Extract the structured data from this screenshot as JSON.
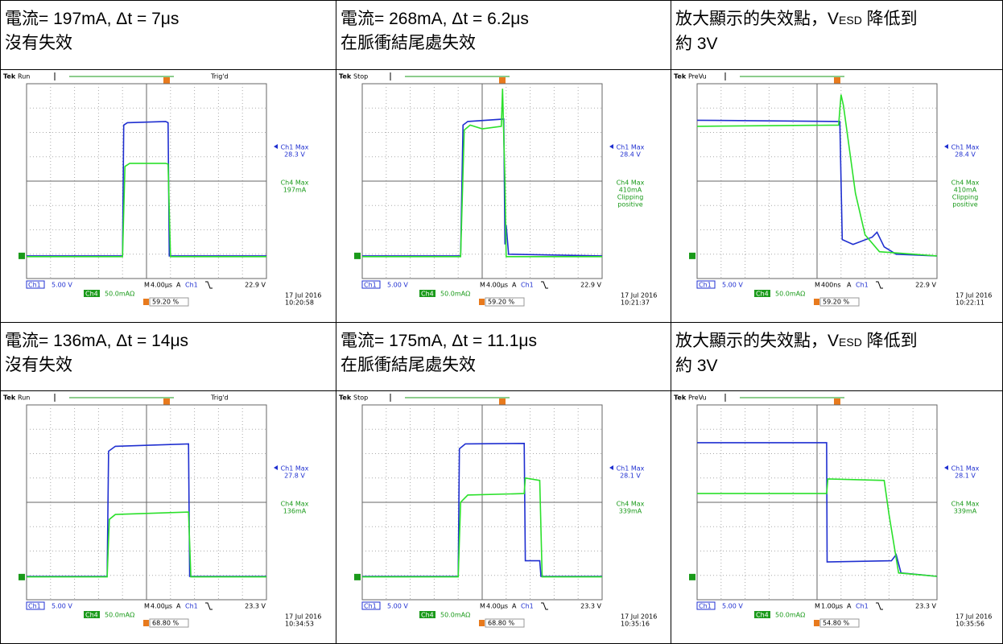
{
  "scope_labels": {
    "brand": "Tek",
    "ch1": "Ch1",
    "ch4": "Ch4",
    "ch1_max": "Ch1 Max",
    "ch4_max": "Ch4 Max",
    "m": "M",
    "a": "A"
  },
  "panels": [
    {
      "caption": [
        [
          {
            "text": "電流= 197mA, Δt = 7μs"
          }
        ],
        [
          {
            "text": "沒有失效"
          }
        ]
      ],
      "scope": {
        "mode": "Run",
        "trigger_state": "Trig'd",
        "ch1_max": "28.3 V",
        "ch4_max": [
          "197mA"
        ],
        "ch1_scale": "5.00 V",
        "timebase": "4.00μs",
        "trigger_level": "22.9 V",
        "ch4_scale": "50.0mAΩ",
        "trigger_position": "59.20 %",
        "date": "17 Jul  2016",
        "time": "10:20:58"
      }
    },
    {
      "caption": [
        [
          {
            "text": "電流= 268mA, Δt = 6.2μs"
          }
        ],
        [
          {
            "text": "在脈衝結尾處失效"
          }
        ]
      ],
      "scope": {
        "mode": "Stop",
        "ch1_max": "28.4 V",
        "ch4_max": [
          "410mA",
          "Clipping",
          "positive"
        ],
        "ch1_scale": "5.00 V",
        "timebase": "4.00μs",
        "trigger_level": "22.9 V",
        "ch4_scale": "50.0mAΩ",
        "trigger_position": "59.20 %",
        "date": "17 Jul  2016",
        "time": "10:21:37"
      }
    },
    {
      "caption": [
        [
          {
            "text": "放大顯示的失效點，V"
          },
          {
            "text": "ESD",
            "subscript": true
          },
          {
            "text": " 降低到"
          }
        ],
        [
          {
            "text": "約 3V"
          }
        ]
      ],
      "scope": {
        "mode": "PreVu",
        "ch1_max": "28.4 V",
        "ch4_max": [
          "410mA",
          "Clipping",
          "positive"
        ],
        "ch1_scale": "5.00 V",
        "timebase": "400ns",
        "trigger_level": "22.9 V",
        "ch4_scale": "50.0mAΩ",
        "trigger_position": "59.20 %",
        "date": "17 Jul  2016",
        "time": "10:22:11"
      }
    },
    {
      "caption": [
        [
          {
            "text": "電流= 136mA, Δt = 14μs"
          }
        ],
        [
          {
            "text": "沒有失效"
          }
        ]
      ],
      "scope": {
        "mode": "Run",
        "trigger_state": "Trig'd",
        "ch1_max": "27.8 V",
        "ch4_max": [
          "136mA"
        ],
        "ch1_scale": "5.00 V",
        "timebase": "4.00μs",
        "trigger_level": "23.3 V",
        "ch4_scale": "50.0mAΩ",
        "trigger_position": "68.80 %",
        "date": "17 Jul  2016",
        "time": "10:34:53"
      }
    },
    {
      "caption": [
        [
          {
            "text": "電流= 175mA, Δt = 11.1μs"
          }
        ],
        [
          {
            "text": "在脈衝結尾處失效"
          }
        ]
      ],
      "scope": {
        "mode": "Stop",
        "ch1_max": "28.1 V",
        "ch4_max": [
          "339mA"
        ],
        "ch1_scale": "5.00 V",
        "timebase": "4.00μs",
        "trigger_level": "23.3 V",
        "ch4_scale": "50.0mAΩ",
        "trigger_position": "68.80 %",
        "date": "17 Jul  2016",
        "time": "10:35:16"
      }
    },
    {
      "caption": [
        [
          {
            "text": "放大顯示的失效點，V"
          },
          {
            "text": "ESD",
            "subscript": true
          },
          {
            "text": " 降低到"
          }
        ],
        [
          {
            "text": "約 3V"
          }
        ]
      ],
      "scope": {
        "mode": "PreVu",
        "ch1_max": "28.1 V",
        "ch4_max": [
          "339mA"
        ],
        "ch1_scale": "5.00 V",
        "timebase": "1.00μs",
        "trigger_level": "23.3 V",
        "ch4_scale": "50.0mAΩ",
        "trigger_position": "54.80 %",
        "date": "17 Jul  2016",
        "time": "10:35:56"
      }
    }
  ]
}
